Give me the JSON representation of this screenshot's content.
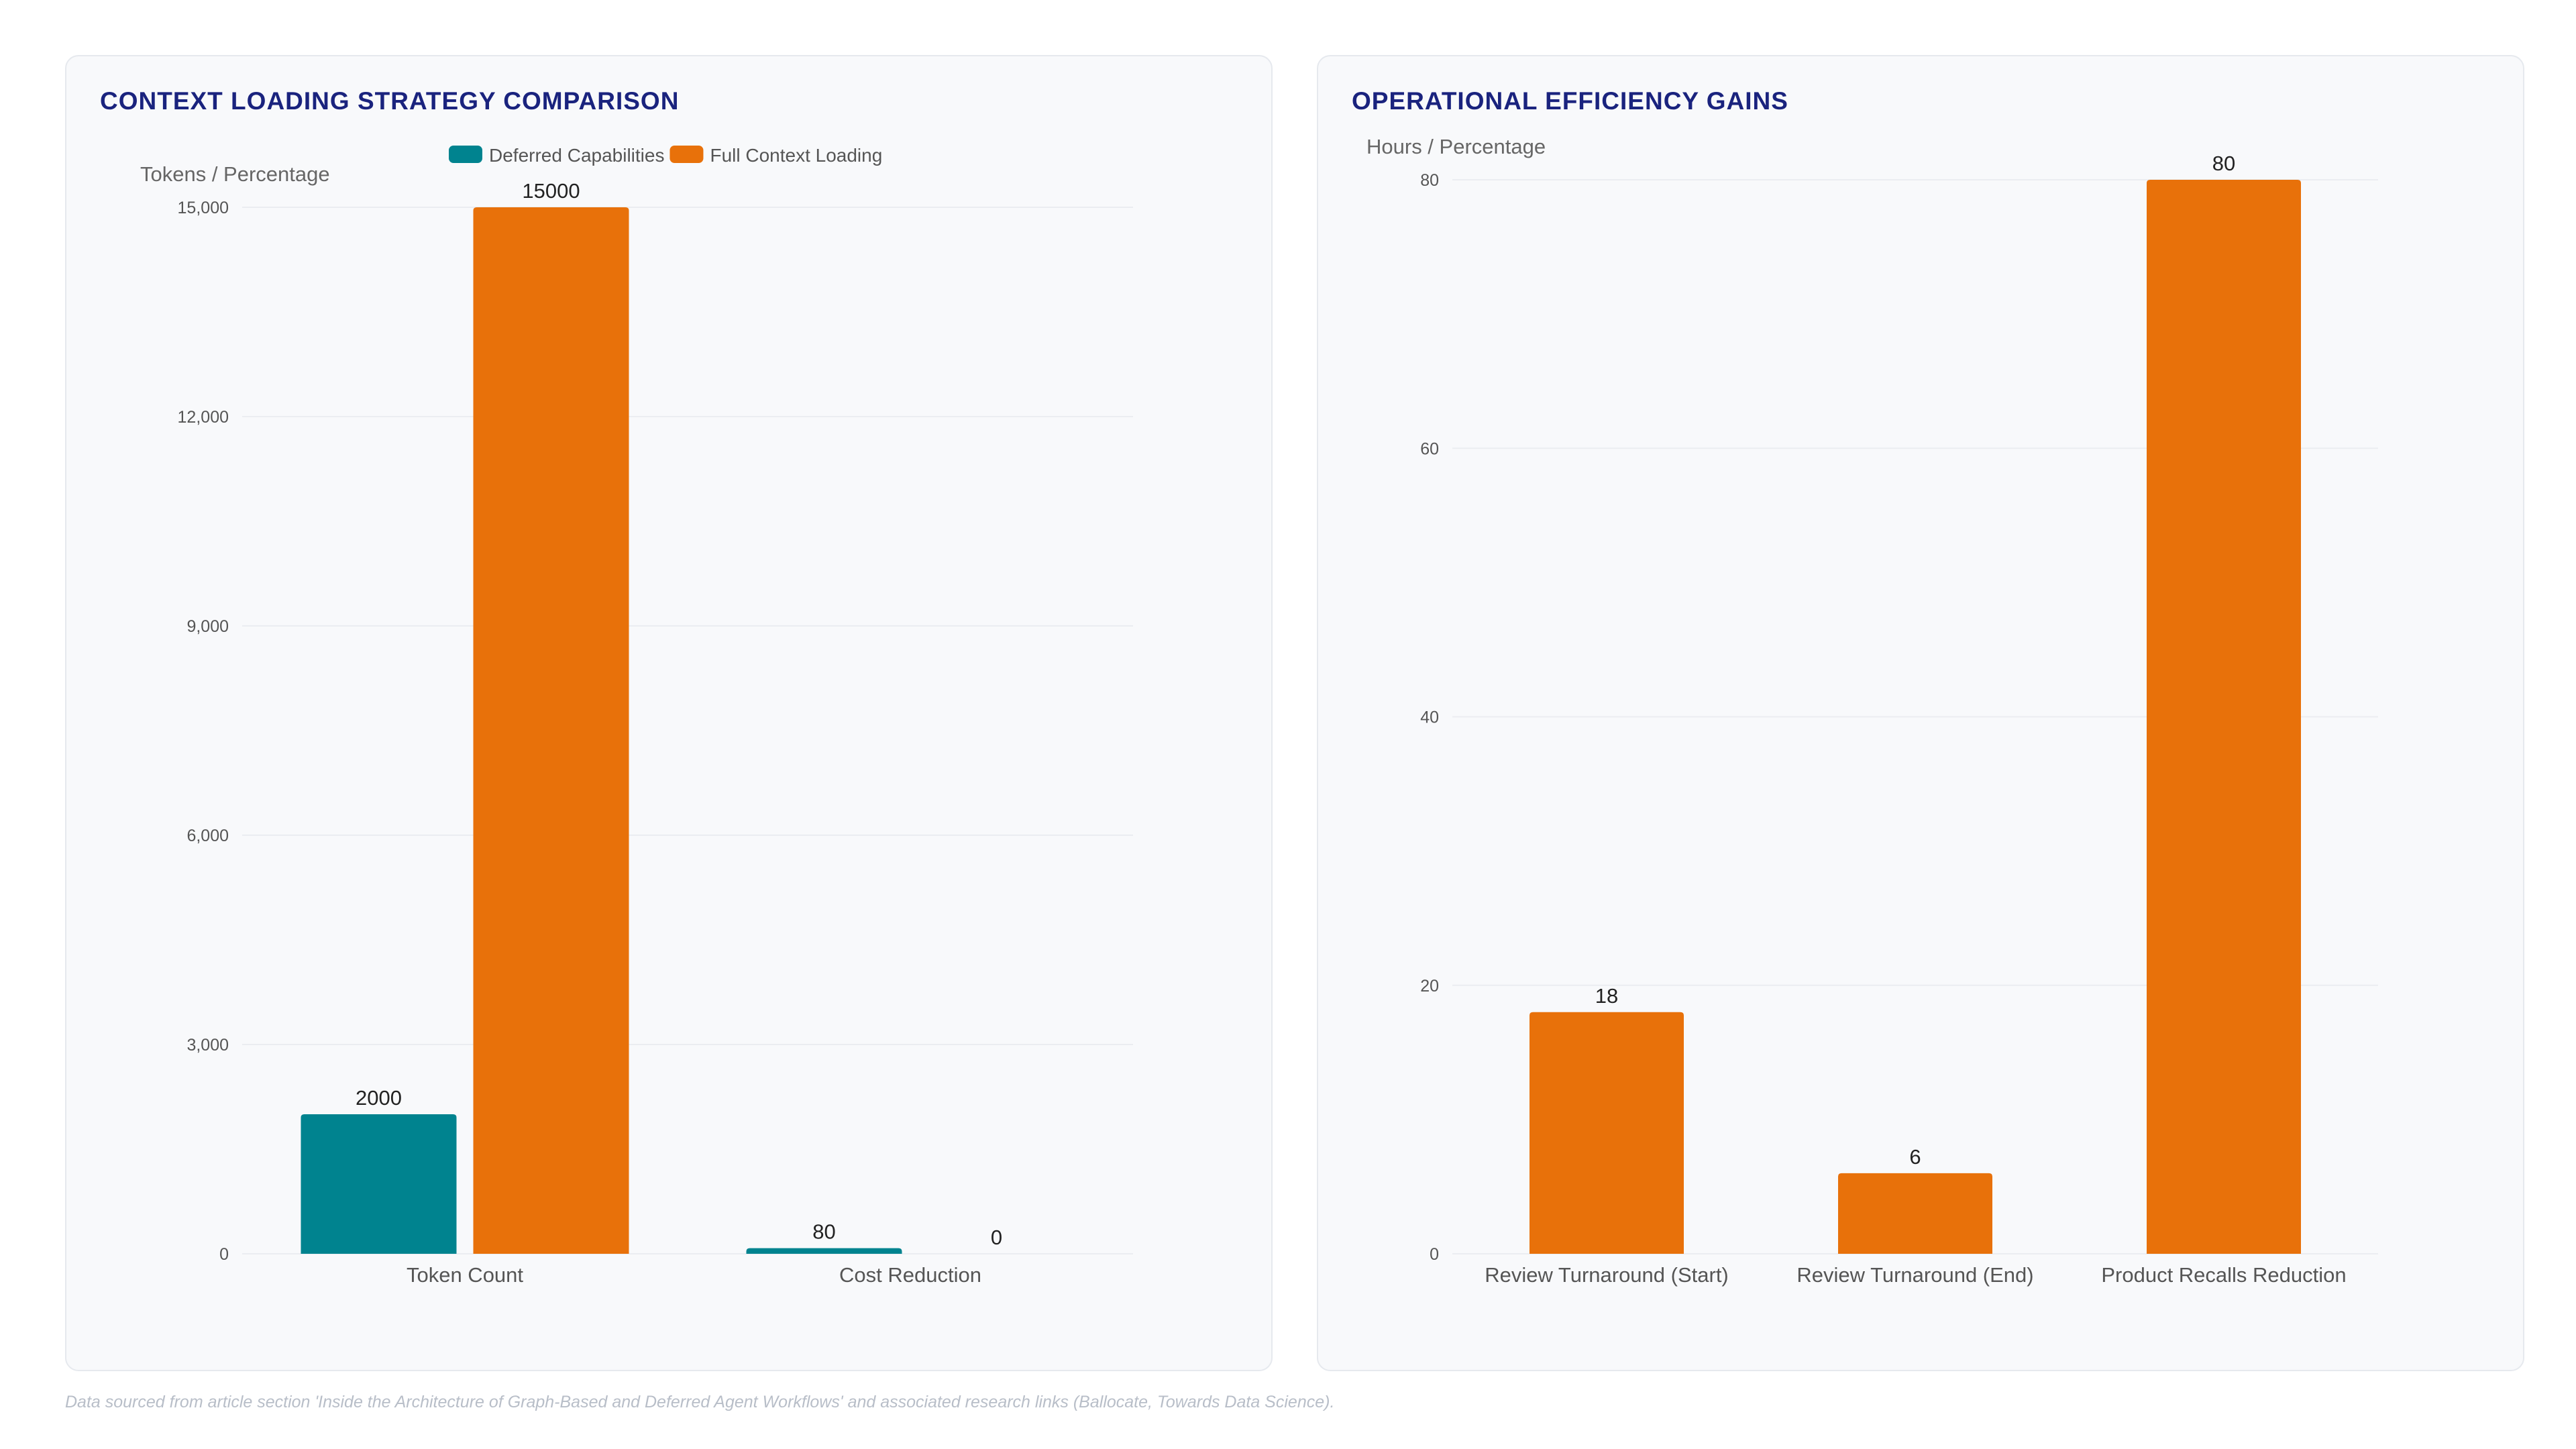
{
  "colors": {
    "deferred": "#00838f",
    "full": "#e8710a",
    "title": "#1a237e",
    "axis_text": "#555555",
    "grid": "#ebedf1"
  },
  "chart_data": [
    {
      "type": "bar",
      "title": "CONTEXT LOADING STRATEGY COMPARISON",
      "xlabel": "",
      "ylabel": "Tokens / Percentage",
      "categories": [
        "Token Count",
        "Cost Reduction"
      ],
      "series": [
        {
          "name": "Deferred Capabilities",
          "values": [
            2000,
            80
          ],
          "color": "#00838f"
        },
        {
          "name": "Full Context Loading",
          "values": [
            15000,
            0
          ],
          "color": "#e8710a"
        }
      ],
      "ylim": [
        0,
        15000
      ],
      "yticks": [
        0,
        3000,
        6000,
        9000,
        12000,
        15000
      ],
      "ytick_labels": [
        "0",
        "3,000",
        "6,000",
        "9,000",
        "12,000",
        "15,000"
      ],
      "grid": true,
      "legend": "top-center",
      "data_labels": true
    },
    {
      "type": "bar",
      "title": "OPERATIONAL EFFICIENCY GAINS",
      "xlabel": "",
      "ylabel": "Hours / Percentage",
      "categories": [
        "Review Turnaround (Start)",
        "Review Turnaround (End)",
        "Product Recalls Reduction"
      ],
      "series": [
        {
          "values": [
            18,
            6,
            80
          ],
          "color": "#e8710a"
        }
      ],
      "ylim": [
        0,
        80
      ],
      "yticks": [
        0,
        20,
        40,
        60,
        80
      ],
      "ytick_labels": [
        "0",
        "20",
        "40",
        "60",
        "80"
      ],
      "grid": true,
      "legend": "none",
      "data_labels": true
    }
  ],
  "footnote": "Data sourced from article section 'Inside the Architecture of Graph-Based and Deferred Agent Workflows' and associated research links (Ballocate, Towards Data Science)."
}
